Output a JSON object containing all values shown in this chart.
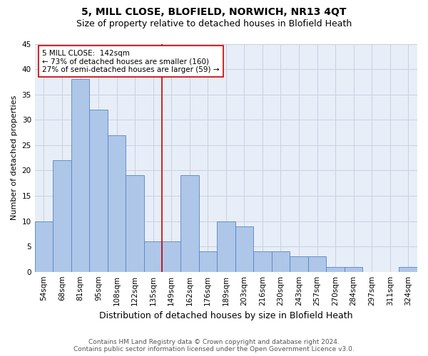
{
  "title": "5, MILL CLOSE, BLOFIELD, NORWICH, NR13 4QT",
  "subtitle": "Size of property relative to detached houses in Blofield Heath",
  "xlabel": "Distribution of detached houses by size in Blofield Heath",
  "ylabel": "Number of detached properties",
  "categories": [
    "54sqm",
    "68sqm",
    "81sqm",
    "95sqm",
    "108sqm",
    "122sqm",
    "135sqm",
    "149sqm",
    "162sqm",
    "176sqm",
    "189sqm",
    "203sqm",
    "216sqm",
    "230sqm",
    "243sqm",
    "257sqm",
    "270sqm",
    "284sqm",
    "297sqm",
    "311sqm",
    "324sqm"
  ],
  "values": [
    10,
    22,
    38,
    32,
    27,
    19,
    6,
    6,
    19,
    4,
    10,
    9,
    4,
    4,
    3,
    3,
    1,
    1,
    0,
    0,
    1
  ],
  "bar_color": "#aec6e8",
  "bar_edge_color": "#5585c5",
  "vline_color": "#cc0000",
  "annotation_box_color": "#ffffff",
  "annotation_box_edge": "#cc0000",
  "ylim": [
    0,
    45
  ],
  "yticks": [
    0,
    5,
    10,
    15,
    20,
    25,
    30,
    35,
    40,
    45
  ],
  "grid_color": "#c8d0e0",
  "background_color": "#e8eef8",
  "property_label": "5 MILL CLOSE:  142sqm",
  "annotation_line1": "← 73% of detached houses are smaller (160)",
  "annotation_line2": "27% of semi-detached houses are larger (59) →",
  "footer_line1": "Contains HM Land Registry data © Crown copyright and database right 2024.",
  "footer_line2": "Contains public sector information licensed under the Open Government Licence v3.0.",
  "title_fontsize": 10,
  "subtitle_fontsize": 9,
  "xlabel_fontsize": 9,
  "ylabel_fontsize": 8,
  "tick_fontsize": 7.5,
  "annotation_fontsize": 7.5,
  "footer_fontsize": 6.5
}
